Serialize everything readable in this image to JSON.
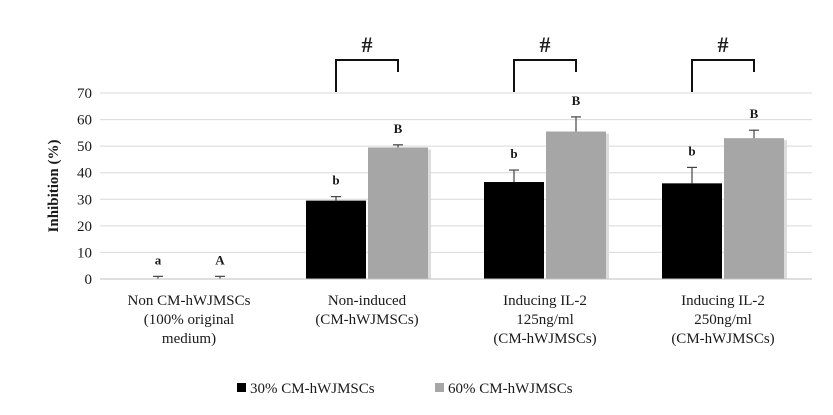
{
  "chart_data": {
    "type": "bar",
    "title": "",
    "ylabel": "Inhibition  (%)",
    "ylim": [
      0,
      70
    ],
    "yticks": [
      0,
      10,
      20,
      30,
      40,
      50,
      60,
      70
    ],
    "grid": true,
    "legend_position": "bottom",
    "categories": [
      [
        "Non CM-hWJMSCs",
        "(100% original",
        "medium)"
      ],
      [
        "Non-induced",
        "(CM-hWJMSCs)"
      ],
      [
        "Inducing IL-2",
        "125ng/ml",
        "(CM-hWJMSCs)"
      ],
      [
        "Inducing IL-2",
        "250ng/ml",
        "(CM-hWJMSCs)"
      ]
    ],
    "series": [
      {
        "name": "30% CM-hWJMSCs",
        "color": "#000000",
        "values": [
          0,
          29.5,
          36.5,
          36
        ],
        "errors": [
          1,
          1.5,
          4.5,
          6
        ],
        "letters": [
          "a",
          "b",
          "b",
          "b"
        ]
      },
      {
        "name": "60% CM-hWJMSCs",
        "color": "#a6a6a6",
        "values": [
          0,
          49.5,
          55.5,
          53
        ],
        "errors": [
          1,
          1,
          5.5,
          3
        ],
        "letters": [
          "A",
          "B",
          "B",
          "B"
        ]
      }
    ],
    "annotations": [
      {
        "between_category": 1,
        "symbol": "#"
      },
      {
        "between_category": 2,
        "symbol": "#"
      },
      {
        "between_category": 3,
        "symbol": "#"
      }
    ]
  }
}
